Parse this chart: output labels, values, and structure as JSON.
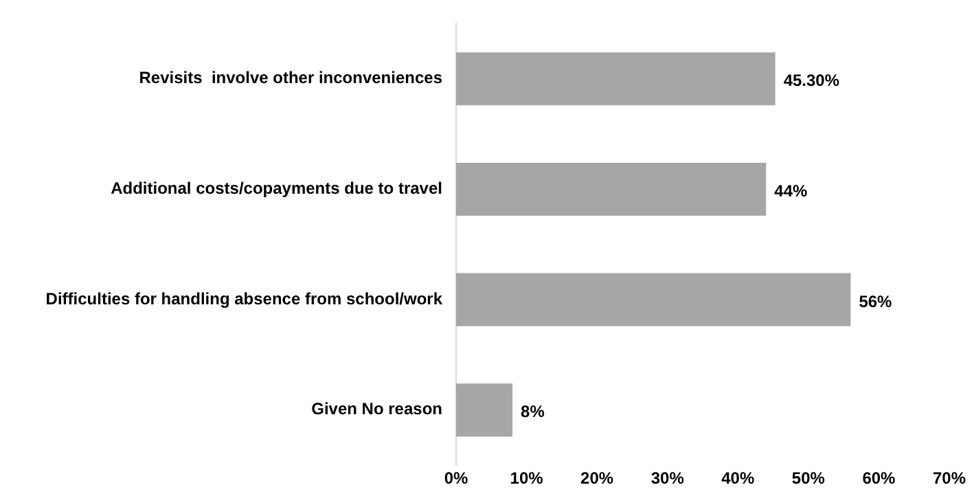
{
  "chart_data": {
    "type": "bar",
    "orientation": "horizontal",
    "categories": [
      "Revisits  involve other inconveniences",
      "Additional costs/copayments due to travel",
      "Difficulties for handling absence from school/work",
      "Given No reason"
    ],
    "values": [
      45.3,
      44,
      56,
      8
    ],
    "color": "#a6a6a6",
    "value_labels": [
      "45.30%",
      "44%",
      "56%",
      "8%"
    ],
    "xlim": [
      0,
      70
    ],
    "xticks": [
      {
        "value": 0,
        "label": "0%"
      },
      {
        "value": 10,
        "label": "10%"
      },
      {
        "value": 20,
        "label": "20%"
      },
      {
        "value": 30,
        "label": "30%"
      },
      {
        "value": 40,
        "label": "40%"
      },
      {
        "value": 50,
        "label": "50%"
      },
      {
        "value": 60,
        "label": "60%"
      },
      {
        "value": 70,
        "label": "70%"
      }
    ],
    "grid": false,
    "legend": false
  }
}
